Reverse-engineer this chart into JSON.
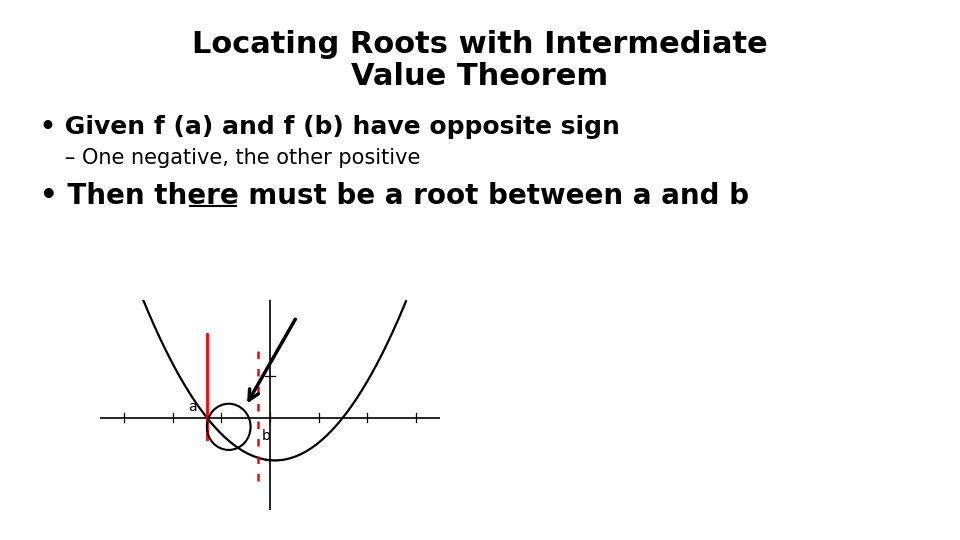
{
  "title_line1": "Locating Roots with Intermediate",
  "title_line2": "Value Theorem",
  "bullet1": "• Given f (a) and f (b) have opposite sign",
  "sub_bullet": "– One negative, the other positive",
  "bullet2_prefix": "• Then there ",
  "bullet2_underline": "must",
  "bullet2_suffix": " be a root between a and b",
  "background_color": "#ffffff",
  "text_color": "#000000",
  "title_fontsize": 22,
  "bullet1_fontsize": 18,
  "sub_fontsize": 15,
  "bullet2_fontsize": 20,
  "curve_color": "#000000",
  "axis_color": "#000000",
  "red_solid_color": "#ff0000",
  "red_dashed_color": "#ff0000",
  "arrow_color": "#000000",
  "circle_color": "#000000",
  "fig_width": 9.6,
  "fig_height": 5.4,
  "dpi": 100
}
